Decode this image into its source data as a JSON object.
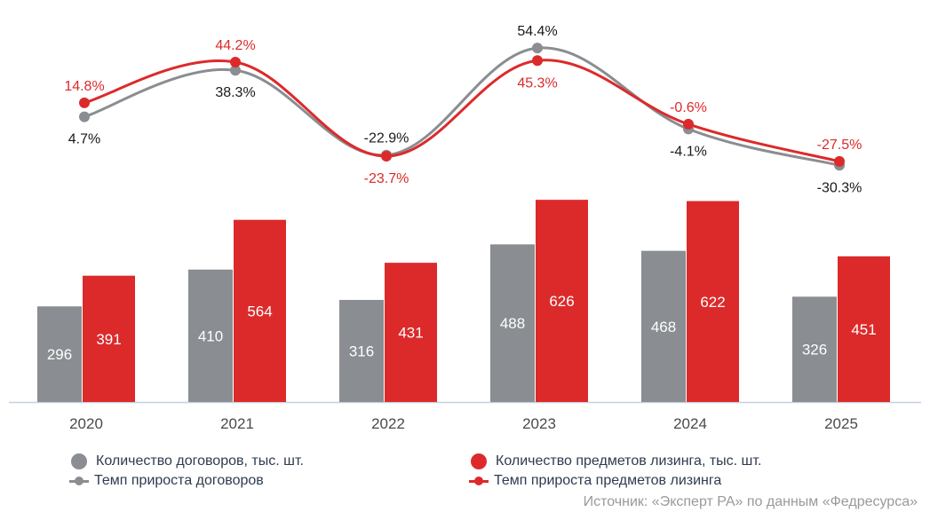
{
  "chart_data": {
    "type": "bar+line",
    "categories": [
      "2020",
      "2021",
      "2022",
      "2023",
      "2024",
      "2025"
    ],
    "bar_series": [
      {
        "name": "Количество договоров, тыс. шт.",
        "color": "#8a8d91",
        "values": [
          296,
          410,
          316,
          488,
          468,
          326
        ]
      },
      {
        "name": "Количество предметов лизинга, тыс. шт.",
        "color": "#dc2a2b",
        "values": [
          391,
          564,
          431,
          626,
          622,
          451
        ]
      }
    ],
    "line_series": [
      {
        "name": "Темп прироста договоров",
        "color": "#8a8d91",
        "values": [
          4.7,
          38.3,
          -22.9,
          54.4,
          -4.1,
          -30.3
        ],
        "labels": [
          "4.7%",
          "38.3%",
          "-22.9%",
          "54.4%",
          "-4.1%",
          "-30.3%"
        ]
      },
      {
        "name": "Темп прироста предметов лизинга",
        "color": "#dc2a2b",
        "values": [
          14.8,
          44.2,
          -23.7,
          45.3,
          -0.6,
          -27.5
        ],
        "labels": [
          "14.8%",
          "44.2%",
          "-23.7%",
          "45.3%",
          "-0.6%",
          "-27.5%"
        ]
      }
    ],
    "grid": false,
    "legend_position": "bottom"
  },
  "legend": {
    "bar_gray": "Количество договоров, тыс. шт.",
    "bar_red": "Количество предметов лизинга, тыс. шт.",
    "line_gray": "Темп прироста договоров",
    "line_red": "Темп прироста предметов лизинга"
  },
  "source": "Источник: «Эксперт РА» по данным «Федресурса»"
}
